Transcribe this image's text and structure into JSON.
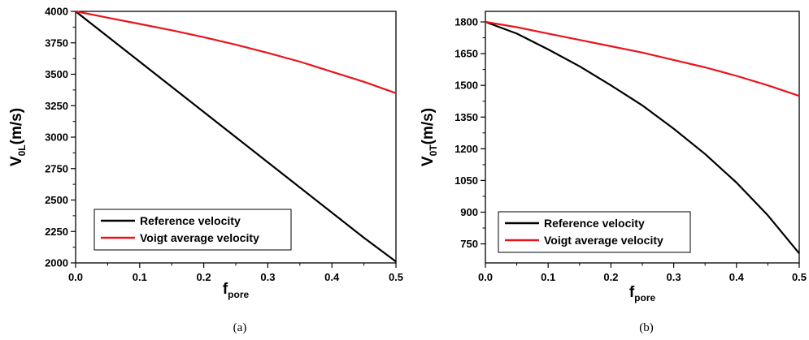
{
  "chart_data": [
    {
      "type": "line",
      "caption": "(a)",
      "xlabel": "f",
      "xlabel_sub": "pore",
      "ylabel": "V",
      "ylabel_sub": "0L",
      "ylabel_unit": "(m/s)",
      "xlim": [
        0,
        0.5
      ],
      "ylim": [
        2000,
        4000
      ],
      "x_ticks": [
        "0.0",
        "0.1",
        "0.2",
        "0.3",
        "0.4",
        "0.5"
      ],
      "y_ticks": [
        "2000",
        "2250",
        "2500",
        "2750",
        "3000",
        "3250",
        "3500",
        "3750",
        "4000"
      ],
      "grid": false,
      "legend_position": "bottom-left",
      "x": [
        0.0,
        0.05,
        0.1,
        0.15,
        0.2,
        0.25,
        0.3,
        0.35,
        0.4,
        0.45,
        0.5
      ],
      "series": [
        {
          "name": "Reference velocity",
          "color": "#000000",
          "values": [
            4000,
            3800,
            3600,
            3400,
            3200,
            3000,
            2800,
            2600,
            2400,
            2200,
            2010
          ]
        },
        {
          "name": "Voigt average velocity",
          "color": "#e8141c",
          "values": [
            4000,
            3950,
            3900,
            3850,
            3795,
            3735,
            3670,
            3600,
            3520,
            3440,
            3350
          ]
        }
      ]
    },
    {
      "type": "line",
      "caption": "(b)",
      "xlabel": "f",
      "xlabel_sub": "pore",
      "ylabel": "V",
      "ylabel_sub": "0T",
      "ylabel_unit": "(m/s)",
      "xlim": [
        0,
        0.5
      ],
      "ylim": [
        660,
        1850
      ],
      "x_ticks": [
        "0.0",
        "0.1",
        "0.2",
        "0.3",
        "0.4",
        "0.5"
      ],
      "y_ticks": [
        "750",
        "900",
        "1050",
        "1200",
        "1350",
        "1500",
        "1650",
        "1800"
      ],
      "grid": false,
      "legend_position": "bottom-left",
      "x": [
        0.0,
        0.05,
        0.1,
        0.15,
        0.2,
        0.25,
        0.3,
        0.35,
        0.4,
        0.45,
        0.5
      ],
      "series": [
        {
          "name": "Reference velocity",
          "color": "#000000",
          "values": [
            1800,
            1745,
            1670,
            1590,
            1500,
            1405,
            1295,
            1175,
            1040,
            885,
            705
          ]
        },
        {
          "name": "Voigt average velocity",
          "color": "#e8141c",
          "values": [
            1800,
            1775,
            1745,
            1715,
            1685,
            1655,
            1620,
            1585,
            1545,
            1500,
            1450
          ]
        }
      ]
    }
  ]
}
